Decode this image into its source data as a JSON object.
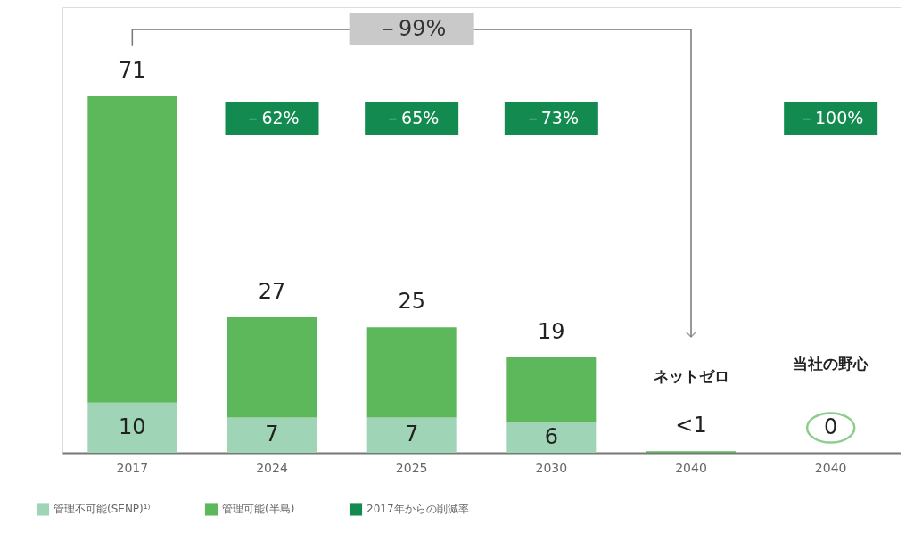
{
  "chart_data": {
    "type": "bar",
    "stacked": true,
    "categories": [
      "2017",
      "2024",
      "2025",
      "2030",
      "2040",
      "2040"
    ],
    "series": [
      {
        "name": "管理不可能(SENP)¹⁾",
        "color": "#9fd4b6",
        "values": [
          10,
          7,
          7,
          6,
          null,
          null
        ],
        "value_labels": [
          "10",
          "7",
          "7",
          "6",
          null,
          null
        ]
      },
      {
        "name": "管理可能(半島)",
        "color": "#5cb85b",
        "values": [
          61,
          20,
          18,
          13,
          0.3,
          0
        ]
      },
      {
        "name": "2017年からの削減率",
        "color": "#138a4f",
        "values": [
          null,
          null,
          null,
          null,
          null,
          null
        ]
      }
    ],
    "totals": [
      "71",
      "27",
      "25",
      "19",
      "<1",
      "0"
    ],
    "annotations": [
      "－99%",
      "－62%",
      "－65%",
      "－73%",
      "－100%",
      "ネットゼロ",
      "当社の野心"
    ],
    "legend": "bottom left"
  }
}
